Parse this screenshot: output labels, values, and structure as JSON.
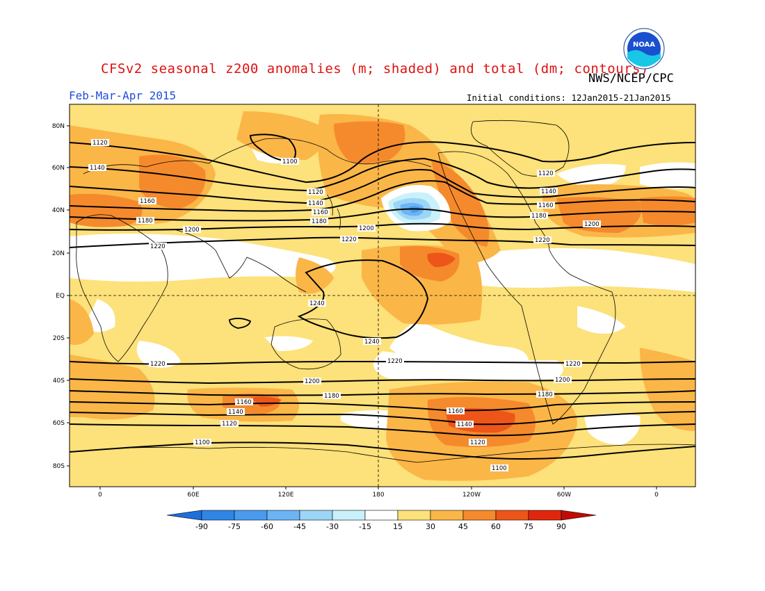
{
  "title": "CFSv2 seasonal z200 anomalies (m; shaded) and total (dm; contours)",
  "agency": "NWS/NCEP/CPC",
  "period": "Feb-Mar-Apr 2015",
  "initial_conditions": "Initial conditions: 12Jan2015-21Jan2015",
  "logo_text": "NOAA",
  "latitude_ticks": [
    "80N",
    "60N",
    "40N",
    "20N",
    "EQ",
    "20S",
    "40S",
    "60S",
    "80S"
  ],
  "longitude_ticks": [
    "0",
    "60E",
    "120E",
    "180",
    "120W",
    "60W",
    "0"
  ],
  "colorbar": {
    "ticks": [
      "-90",
      "-75",
      "-60",
      "-45",
      "-30",
      "-15",
      "15",
      "30",
      "45",
      "60",
      "75",
      "90"
    ],
    "colors": [
      "#1e6fdc",
      "#2f86e6",
      "#4a9bee",
      "#6cb4f4",
      "#9cd6f7",
      "#c8f1fb",
      "#ffffff",
      "#fde17a",
      "#fbb648",
      "#f58a2c",
      "#ed5618",
      "#e0260c",
      "#c00a06"
    ]
  },
  "contour_labels": {
    "north": [
      "1100",
      "1120",
      "1140",
      "1160",
      "1180",
      "1200",
      "1220"
    ],
    "tropics": [
      "1240"
    ],
    "south": [
      "1220",
      "1200",
      "1180",
      "1160",
      "1140",
      "1120",
      "1100"
    ]
  },
  "palette": {
    "land_bg": "#fde17a",
    "pos_medium": "#fbb648",
    "pos_strong": "#f58a2c",
    "pos_strongest": "#ed5618",
    "neg_light": "#9cd6f7",
    "neg_medium": "#6cb4f4",
    "neg_strong": "#4a9bee"
  }
}
